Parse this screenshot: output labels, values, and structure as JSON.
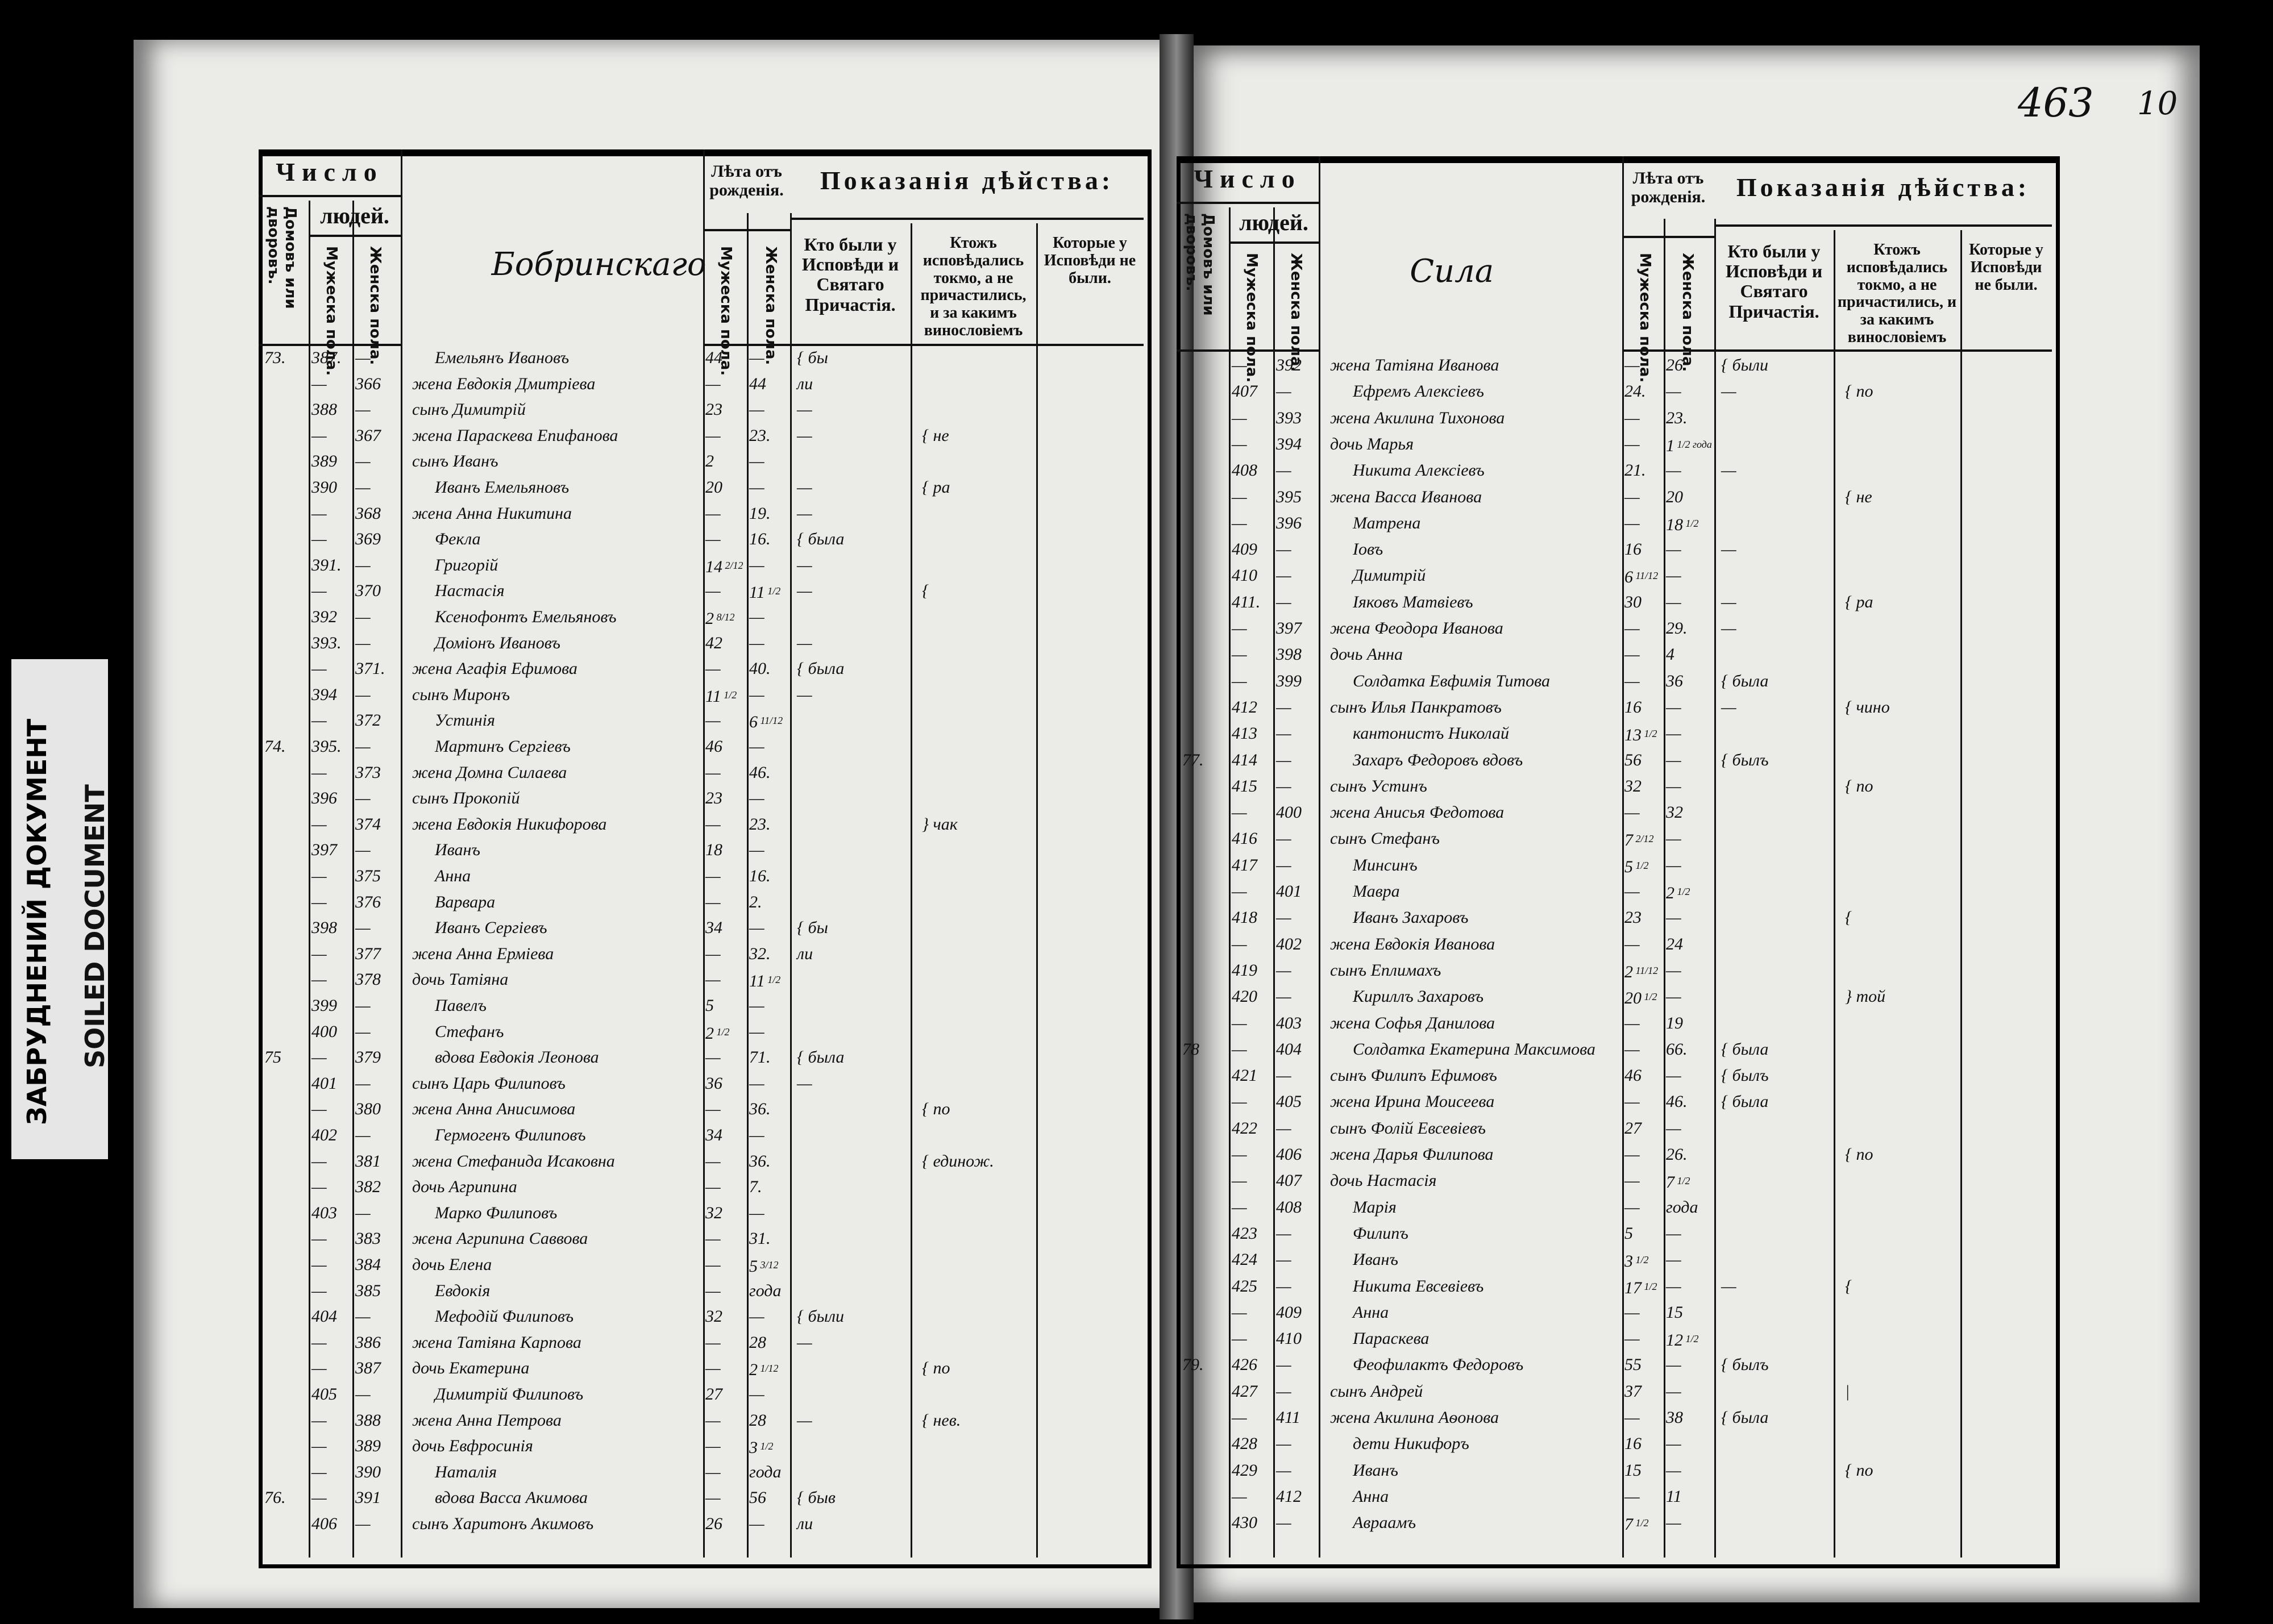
{
  "stamp": {
    "line1": "ЗАБРУДНЕНИЙ ДОКУМЕНТ",
    "line2": "SOILED DOCUMENT"
  },
  "page_number": "463",
  "page_number_2": "10",
  "headers": {
    "chislo": "Число",
    "lyudey": "людей.",
    "domov": "Домовъ или дворовъ.",
    "muzh": "Мужеска пола.",
    "zhen": "Женска пола.",
    "leta": "Лѣта отъ рожденія.",
    "pokazaniya": "Показанія дѣйства:",
    "kto": "Кто были у Исповѣди и Святаго Причастія.",
    "ktozh": "Ктожъ исповѣдались токмо, а не причастились, и за какимъ винословіемъ",
    "kotorye": "Которые у Исповѣди не были."
  },
  "left": {
    "village": "Бобринскаго",
    "rows": [
      {
        "h": "73.",
        "m": "387.",
        "f": "—",
        "name": "Емельянъ Ивановъ",
        "am": "44",
        "af": "—",
        "c1": "{ бы"
      },
      {
        "h": "",
        "m": "—",
        "f": "366",
        "name": "жена Евдокія Дмитріева",
        "am": "—",
        "af": "44",
        "c1": "ли"
      },
      {
        "h": "",
        "m": "388",
        "f": "—",
        "name": "сынъ Димитрій",
        "am": "23",
        "af": "—",
        "c1": "—"
      },
      {
        "h": "",
        "m": "—",
        "f": "367",
        "name": "жена Параскева Епифанова",
        "am": "—",
        "af": "23.",
        "c1": "—",
        "c2": "{ не"
      },
      {
        "h": "",
        "m": "389",
        "f": "—",
        "name": "сынъ Иванъ",
        "am": "2",
        "af": "—"
      },
      {
        "h": "",
        "m": "390",
        "f": "—",
        "name": "Иванъ Емельяновъ",
        "am": "20",
        "af": "—",
        "c1": "—",
        "c2": "{ ра"
      },
      {
        "h": "",
        "m": "—",
        "f": "368",
        "name": "жена Анна Никитина",
        "am": "—",
        "af": "19.",
        "c1": "—"
      },
      {
        "h": "",
        "m": "—",
        "f": "369",
        "name": "Фекла",
        "am": "—",
        "af": "16.",
        "c1": "{ была"
      },
      {
        "h": "",
        "m": "391.",
        "f": "—",
        "name": "Григорій",
        "am": "14 2/12",
        "af": "—",
        "c1": "—"
      },
      {
        "h": "",
        "m": "—",
        "f": "370",
        "name": "Настасія",
        "am": "—",
        "af": "11 1/2",
        "c1": "—",
        "c2": "{"
      },
      {
        "h": "",
        "m": "392",
        "f": "—",
        "name": "Ксенофонтъ Емельяновъ",
        "am": "2 8/12",
        "af": "—"
      },
      {
        "h": "",
        "m": "393.",
        "f": "—",
        "name": "Доміонъ Ивановъ",
        "am": "42",
        "af": "—",
        "c1": "—"
      },
      {
        "h": "",
        "m": "—",
        "f": "371.",
        "name": "жена Агафія Ефимова",
        "am": "—",
        "af": "40.",
        "c1": "{ была"
      },
      {
        "h": "",
        "m": "394",
        "f": "—",
        "name": "сынъ Миронъ",
        "am": "11 1/2",
        "af": "—",
        "c1": "—"
      },
      {
        "h": "",
        "m": "—",
        "f": "372",
        "name": "Устинія",
        "am": "—",
        "af": "6 11/12"
      },
      {
        "h": "74.",
        "m": "395.",
        "f": "—",
        "name": "Мартинъ Сергіевъ",
        "am": "46",
        "af": "—"
      },
      {
        "h": "",
        "m": "—",
        "f": "373",
        "name": "жена Домна Силаева",
        "am": "—",
        "af": "46."
      },
      {
        "h": "",
        "m": "396",
        "f": "—",
        "name": "сынъ Прокопій",
        "am": "23",
        "af": "—"
      },
      {
        "h": "",
        "m": "—",
        "f": "374",
        "name": "жена Евдокія Никифорова",
        "am": "—",
        "af": "23.",
        "c2": "} чак"
      },
      {
        "h": "",
        "m": "397",
        "f": "—",
        "name": "Иванъ",
        "am": "18",
        "af": "—"
      },
      {
        "h": "",
        "m": "—",
        "f": "375",
        "name": "Анна",
        "am": "—",
        "af": "16."
      },
      {
        "h": "",
        "m": "—",
        "f": "376",
        "name": "Варвара",
        "am": "—",
        "af": "2."
      },
      {
        "h": "",
        "m": "398",
        "f": "—",
        "name": "Иванъ Сергіевъ",
        "am": "34",
        "af": "—",
        "c1": "{ бы"
      },
      {
        "h": "",
        "m": "—",
        "f": "377",
        "name": "жена Анна Ерміева",
        "am": "—",
        "af": "32.",
        "c1": "ли"
      },
      {
        "h": "",
        "m": "—",
        "f": "378",
        "name": "дочь Татіяна",
        "am": "—",
        "af": "11 1/2"
      },
      {
        "h": "",
        "m": "399",
        "f": "—",
        "name": "Павелъ",
        "am": "5",
        "af": "—"
      },
      {
        "h": "",
        "m": "400",
        "f": "—",
        "name": "Стефанъ",
        "am": "2 1/2",
        "af": "—"
      },
      {
        "h": "75",
        "m": "—",
        "f": "379",
        "name": "вдова Евдокія Леонова",
        "am": "—",
        "af": "71.",
        "c1": "{ была"
      },
      {
        "h": "",
        "m": "401",
        "f": "—",
        "name": "сынъ Царь Филиповъ",
        "am": "36",
        "af": "—",
        "c1": "—"
      },
      {
        "h": "",
        "m": "—",
        "f": "380",
        "name": "жена Анна Анисимова",
        "am": "—",
        "af": "36.",
        "c2": "{ по"
      },
      {
        "h": "",
        "m": "402",
        "f": "—",
        "name": "Гермогенъ Филиповъ",
        "am": "34",
        "af": "—"
      },
      {
        "h": "",
        "m": "—",
        "f": "381",
        "name": "жена Стефанида Исаковна",
        "am": "—",
        "af": "36.",
        "c2": "{ единож."
      },
      {
        "h": "",
        "m": "—",
        "f": "382",
        "name": "дочь Агрипина",
        "am": "—",
        "af": "7."
      },
      {
        "h": "",
        "m": "403",
        "f": "—",
        "name": "Марко Филиповъ",
        "am": "32",
        "af": "—"
      },
      {
        "h": "",
        "m": "—",
        "f": "383",
        "name": "жена Агрипина Саввова",
        "am": "—",
        "af": "31."
      },
      {
        "h": "",
        "m": "—",
        "f": "384",
        "name": "дочь Елена",
        "am": "—",
        "af": "5 3/12"
      },
      {
        "h": "",
        "m": "—",
        "f": "385",
        "name": "Евдокія",
        "am": "—",
        "af": "года"
      },
      {
        "h": "",
        "m": "404",
        "f": "—",
        "name": "Мефодій Филиповъ",
        "am": "32",
        "af": "—",
        "c1": "{ были"
      },
      {
        "h": "",
        "m": "—",
        "f": "386",
        "name": "жена Татіяна Карпова",
        "am": "—",
        "af": "28",
        "c1": "—"
      },
      {
        "h": "",
        "m": "—",
        "f": "387",
        "name": "дочь Екатерина",
        "am": "—",
        "af": "2 1/12",
        "c2": "{ по"
      },
      {
        "h": "",
        "m": "405",
        "f": "—",
        "name": "Димитрій Филиповъ",
        "am": "27",
        "af": "—"
      },
      {
        "h": "",
        "m": "—",
        "f": "388",
        "name": "жена Анна Петрова",
        "am": "—",
        "af": "28",
        "c1": "—",
        "c2": "{ нев."
      },
      {
        "h": "",
        "m": "—",
        "f": "389",
        "name": "дочь Евфросинія",
        "am": "—",
        "af": "3 1/2"
      },
      {
        "h": "",
        "m": "—",
        "f": "390",
        "name": "Наталія",
        "am": "—",
        "af": "года"
      },
      {
        "h": "76.",
        "m": "—",
        "f": "391",
        "name": "вдова Васса Акимова",
        "am": "—",
        "af": "56",
        "c1": "{ быв"
      },
      {
        "h": "",
        "m": "406",
        "f": "—",
        "name": "сынъ Харитонъ Акимовъ",
        "am": "26",
        "af": "—",
        "c1": "ли"
      }
    ]
  },
  "right": {
    "village": "Сила",
    "rows": [
      {
        "h": "",
        "m": "—",
        "f": "392",
        "name": "жена Татіяна Иванова",
        "am": "—",
        "af": "26",
        "c1": "{ были"
      },
      {
        "h": "",
        "m": "407",
        "f": "—",
        "name": "Ефремъ Алексіевъ",
        "am": "24.",
        "af": "—",
        "c1": "—",
        "c2": "{ по"
      },
      {
        "h": "",
        "m": "—",
        "f": "393",
        "name": "жена Акилина Тихонова",
        "am": "—",
        "af": "23."
      },
      {
        "h": "",
        "m": "—",
        "f": "394",
        "name": "дочь Марья",
        "am": "—",
        "af": "1 1/2 года"
      },
      {
        "h": "",
        "m": "408",
        "f": "—",
        "name": "Никита Алексіевъ",
        "am": "21.",
        "af": "—",
        "c1": "—"
      },
      {
        "h": "",
        "m": "—",
        "f": "395",
        "name": "жена Васса Иванова",
        "am": "—",
        "af": "20",
        "c2": "{ не"
      },
      {
        "h": "",
        "m": "—",
        "f": "396",
        "name": "Матрена",
        "am": "—",
        "af": "18 1/2"
      },
      {
        "h": "",
        "m": "409",
        "f": "—",
        "name": "Іовъ",
        "am": "16",
        "af": "—",
        "c1": "—"
      },
      {
        "h": "",
        "m": "410",
        "f": "—",
        "name": "Димитрій",
        "am": "6 11/12",
        "af": "—"
      },
      {
        "h": "",
        "m": "411.",
        "f": "—",
        "name": "Іяковъ Матвіевъ",
        "am": "30",
        "af": "—",
        "c1": "—",
        "c2": "{ ра"
      },
      {
        "h": "",
        "m": "—",
        "f": "397",
        "name": "жена Феодора Иванова",
        "am": "—",
        "af": "29.",
        "c1": "—"
      },
      {
        "h": "",
        "m": "—",
        "f": "398",
        "name": "дочь Анна",
        "am": "—",
        "af": "4"
      },
      {
        "h": "",
        "m": "—",
        "f": "399",
        "name": "Солдатка Евфимія Титова",
        "am": "—",
        "af": "36",
        "c1": "{ была"
      },
      {
        "h": "",
        "m": "412",
        "f": "—",
        "name": "сынъ Илья Панкратовъ",
        "am": "16",
        "af": "—",
        "c1": "—",
        "c2": "{ чино"
      },
      {
        "h": "",
        "m": "413",
        "f": "—",
        "name": "кантонистъ Николай",
        "am": "13 1/2",
        "af": "—"
      },
      {
        "h": "77.",
        "m": "414",
        "f": "—",
        "name": "Захаръ Федоровъ вдовъ",
        "am": "56",
        "af": "—",
        "c1": "{ былъ"
      },
      {
        "h": "",
        "m": "415",
        "f": "—",
        "name": "сынъ Устинъ",
        "am": "32",
        "af": "—",
        "c2": "{ по"
      },
      {
        "h": "",
        "m": "—",
        "f": "400",
        "name": "жена Анисья Федотова",
        "am": "—",
        "af": "32"
      },
      {
        "h": "",
        "m": "416",
        "f": "—",
        "name": "сынъ Стефанъ",
        "am": "7 2/12",
        "af": "—"
      },
      {
        "h": "",
        "m": "417",
        "f": "—",
        "name": "Минсинъ",
        "am": "5 1/2",
        "af": "—"
      },
      {
        "h": "",
        "m": "—",
        "f": "401",
        "name": "Мавра",
        "am": "—",
        "af": "2 1/2"
      },
      {
        "h": "",
        "m": "418",
        "f": "—",
        "name": "Иванъ Захаровъ",
        "am": "23",
        "af": "—",
        "c2": "{"
      },
      {
        "h": "",
        "m": "—",
        "f": "402",
        "name": "жена Евдокія Иванова",
        "am": "—",
        "af": "24"
      },
      {
        "h": "",
        "m": "419",
        "f": "—",
        "name": "сынъ Еплимахъ",
        "am": "2 11/12",
        "af": "—"
      },
      {
        "h": "",
        "m": "420",
        "f": "—",
        "name": "Кириллъ Захаровъ",
        "am": "20 1/2",
        "af": "—",
        "c2": "} той"
      },
      {
        "h": "",
        "m": "—",
        "f": "403",
        "name": "жена Софья Данилова",
        "am": "—",
        "af": "19"
      },
      {
        "h": "78",
        "m": "—",
        "f": "404",
        "name": "Солдатка Екатерина Максимова",
        "am": "—",
        "af": "66.",
        "c1": "{ была"
      },
      {
        "h": "",
        "m": "421",
        "f": "—",
        "name": "сынъ Филипъ Ефимовъ",
        "am": "46",
        "af": "—",
        "c1": "{ былъ"
      },
      {
        "h": "",
        "m": "—",
        "f": "405",
        "name": "жена Ирина Моисеева",
        "am": "—",
        "af": "46.",
        "c1": "{ была"
      },
      {
        "h": "",
        "m": "422",
        "f": "—",
        "name": "сынъ Фолій Евсевіевъ",
        "am": "27",
        "af": "—"
      },
      {
        "h": "",
        "m": "—",
        "f": "406",
        "name": "жена Дарья Филипова",
        "am": "—",
        "af": "26.",
        "c2": "{ по"
      },
      {
        "h": "",
        "m": "—",
        "f": "407",
        "name": "дочь Настасія",
        "am": "—",
        "af": "7 1/2"
      },
      {
        "h": "",
        "m": "—",
        "f": "408",
        "name": "Марія",
        "am": "—",
        "af": "года"
      },
      {
        "h": "",
        "m": "423",
        "f": "—",
        "name": "Филипъ",
        "am": "5",
        "af": "—"
      },
      {
        "h": "",
        "m": "424",
        "f": "—",
        "name": "Иванъ",
        "am": "3 1/2",
        "af": "—"
      },
      {
        "h": "",
        "m": "425",
        "f": "—",
        "name": "Никита Евсевіевъ",
        "am": "17 1/2",
        "af": "—",
        "c1": "—",
        "c2": "{"
      },
      {
        "h": "",
        "m": "—",
        "f": "409",
        "name": "Анна",
        "am": "—",
        "af": "15"
      },
      {
        "h": "",
        "m": "—",
        "f": "410",
        "name": "Параскева",
        "am": "—",
        "af": "12 1/2"
      },
      {
        "h": "79.",
        "m": "426",
        "f": "—",
        "name": "Феофилактъ Федоровъ",
        "am": "55",
        "af": "—",
        "c1": "{ былъ"
      },
      {
        "h": "",
        "m": "427",
        "f": "—",
        "name": "сынъ Андрей",
        "am": "37",
        "af": "—",
        "c2": "|"
      },
      {
        "h": "",
        "m": "—",
        "f": "411",
        "name": "жена Акилина Аѳонова",
        "am": "—",
        "af": "38",
        "c1": "{ была"
      },
      {
        "h": "",
        "m": "428",
        "f": "—",
        "name": "дети Никифоръ",
        "am": "16",
        "af": "—"
      },
      {
        "h": "",
        "m": "429",
        "f": "—",
        "name": "Иванъ",
        "am": "15",
        "af": "—",
        "c2": "{ по"
      },
      {
        "h": "",
        "m": "—",
        "f": "412",
        "name": "Анна",
        "am": "—",
        "af": "11"
      },
      {
        "h": "",
        "m": "430",
        "f": "—",
        "name": "Авраамъ",
        "am": "7 1/2",
        "af": "—"
      }
    ]
  }
}
